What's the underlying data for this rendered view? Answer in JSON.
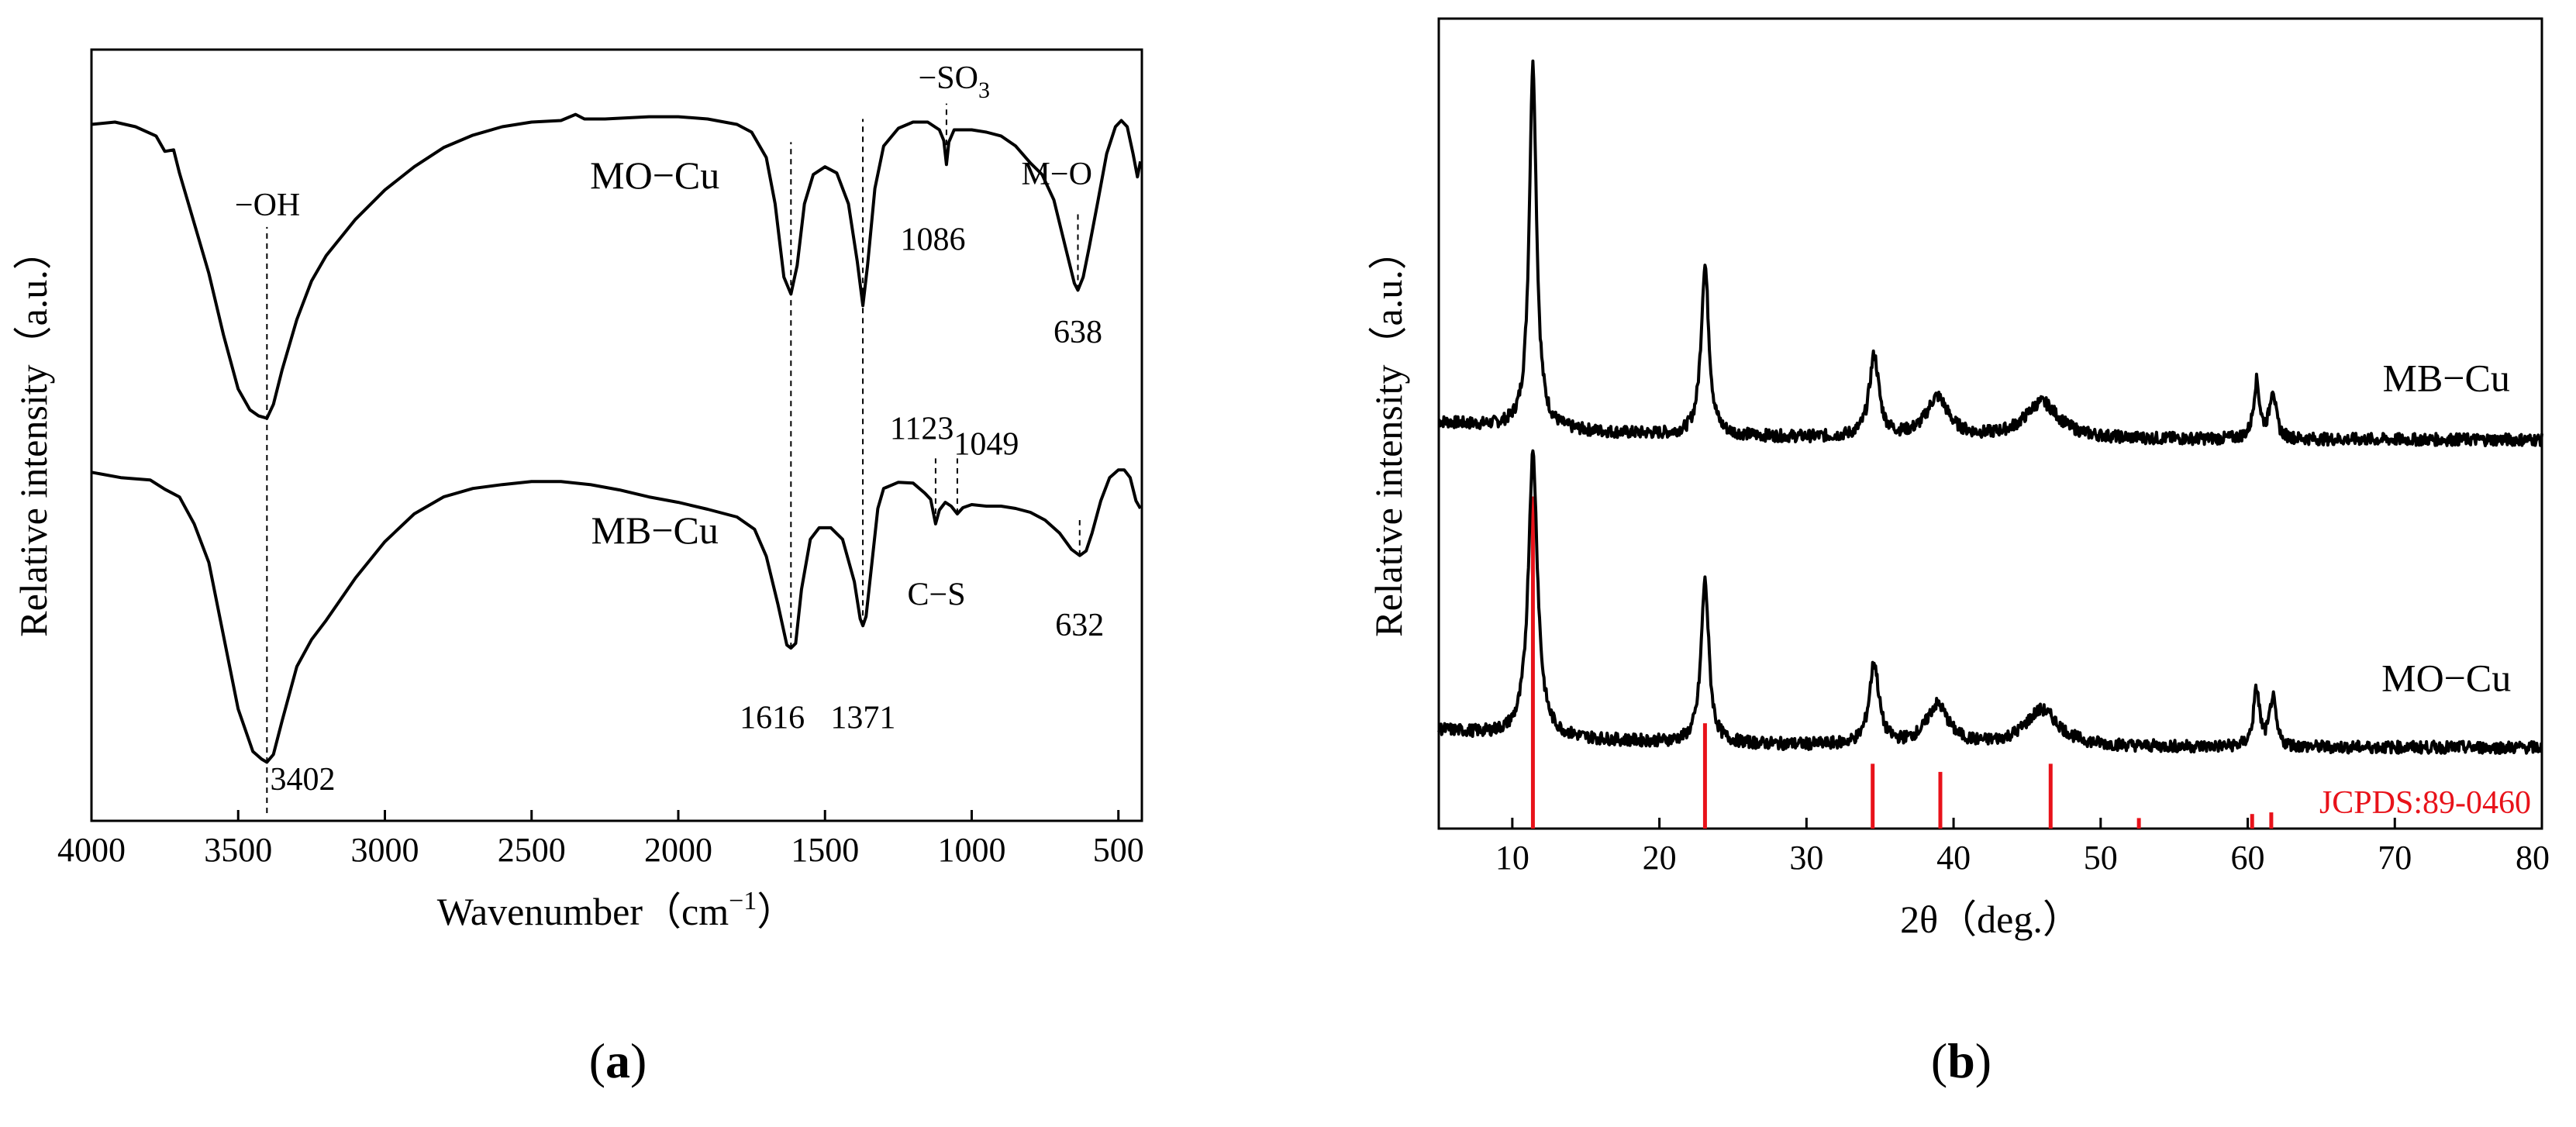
{
  "chart_data": [
    {
      "panel": "a",
      "panel_label": "(a)",
      "type": "line",
      "title": "",
      "xlabel": "Wavenumber（cm",
      "xlabel_sup": "−1",
      "xlabel_end": "）",
      "ylabel": "Relative intensity（a.u.）",
      "xlim": [
        4000,
        420
      ],
      "ylim": [
        0,
        100
      ],
      "xticks": [
        4000,
        3500,
        3000,
        2500,
        2000,
        1500,
        1000,
        500
      ],
      "grid": false,
      "series": [
        {
          "name": "MO−Cu",
          "points": [
            [
              4000,
              90.3
            ],
            [
              3920,
              90.6
            ],
            [
              3850,
              90.0
            ],
            [
              3780,
              88.8
            ],
            [
              3750,
              86.8
            ],
            [
              3720,
              87.0
            ],
            [
              3700,
              84.0
            ],
            [
              3650,
              77.5
            ],
            [
              3600,
              71.0
            ],
            [
              3550,
              63.0
            ],
            [
              3500,
              56.0
            ],
            [
              3460,
              53.3
            ],
            [
              3430,
              52.5
            ],
            [
              3402,
              52.2
            ],
            [
              3380,
              54.0
            ],
            [
              3350,
              58.5
            ],
            [
              3300,
              65.0
            ],
            [
              3250,
              70.0
            ],
            [
              3200,
              73.3
            ],
            [
              3100,
              78.0
            ],
            [
              3000,
              81.8
            ],
            [
              2900,
              84.8
            ],
            [
              2800,
              87.3
            ],
            [
              2700,
              88.9
            ],
            [
              2600,
              90.0
            ],
            [
              2500,
              90.6
            ],
            [
              2400,
              90.8
            ],
            [
              2350,
              91.6
            ],
            [
              2320,
              91.0
            ],
            [
              2250,
              91.0
            ],
            [
              2100,
              91.3
            ],
            [
              2000,
              91.3
            ],
            [
              1900,
              91.0
            ],
            [
              1800,
              90.3
            ],
            [
              1750,
              89.3
            ],
            [
              1700,
              86.0
            ],
            [
              1670,
              80.0
            ],
            [
              1640,
              70.5
            ],
            [
              1616,
              68.3
            ],
            [
              1595,
              72.0
            ],
            [
              1570,
              80.0
            ],
            [
              1540,
              83.8
            ],
            [
              1500,
              84.8
            ],
            [
              1460,
              84.0
            ],
            [
              1420,
              80.0
            ],
            [
              1390,
              72.5
            ],
            [
              1371,
              66.8
            ],
            [
              1355,
              72.0
            ],
            [
              1330,
              82.0
            ],
            [
              1300,
              87.5
            ],
            [
              1250,
              89.8
            ],
            [
              1200,
              90.6
            ],
            [
              1150,
              90.6
            ],
            [
              1110,
              89.6
            ],
            [
              1095,
              88.2
            ],
            [
              1086,
              85.1
            ],
            [
              1078,
              88.0
            ],
            [
              1060,
              89.6
            ],
            [
              1000,
              89.6
            ],
            [
              950,
              89.3
            ],
            [
              900,
              88.8
            ],
            [
              850,
              87.5
            ],
            [
              800,
              85.3
            ],
            [
              760,
              83.8
            ],
            [
              720,
              80.5
            ],
            [
              680,
              74.3
            ],
            [
              650,
              69.7
            ],
            [
              638,
              68.8
            ],
            [
              620,
              70.5
            ],
            [
              600,
              74.3
            ],
            [
              570,
              80.3
            ],
            [
              540,
              86.5
            ],
            [
              510,
              90.0
            ],
            [
              490,
              90.8
            ],
            [
              470,
              90.0
            ],
            [
              450,
              86.5
            ],
            [
              435,
              83.5
            ],
            [
              425,
              85.5
            ]
          ]
        },
        {
          "name": "MB−Cu",
          "points": [
            [
              4000,
              45.2
            ],
            [
              3900,
              44.5
            ],
            [
              3800,
              44.2
            ],
            [
              3750,
              43.0
            ],
            [
              3700,
              42.0
            ],
            [
              3650,
              38.5
            ],
            [
              3600,
              33.5
            ],
            [
              3550,
              24.0
            ],
            [
              3500,
              14.5
            ],
            [
              3450,
              9.0
            ],
            [
              3420,
              8.0
            ],
            [
              3402,
              7.6
            ],
            [
              3380,
              8.6
            ],
            [
              3350,
              13.0
            ],
            [
              3300,
              20.0
            ],
            [
              3250,
              23.5
            ],
            [
              3200,
              26.0
            ],
            [
              3100,
              31.5
            ],
            [
              3000,
              36.2
            ],
            [
              2900,
              39.8
            ],
            [
              2800,
              42.0
            ],
            [
              2700,
              43.1
            ],
            [
              2600,
              43.6
            ],
            [
              2500,
              44.0
            ],
            [
              2400,
              44.0
            ],
            [
              2300,
              43.6
            ],
            [
              2200,
              42.9
            ],
            [
              2100,
              42.0
            ],
            [
              2000,
              41.3
            ],
            [
              1900,
              40.4
            ],
            [
              1800,
              39.4
            ],
            [
              1740,
              37.8
            ],
            [
              1700,
              34.3
            ],
            [
              1660,
              28.0
            ],
            [
              1630,
              22.8
            ],
            [
              1616,
              22.4
            ],
            [
              1600,
              23.0
            ],
            [
              1580,
              30.0
            ],
            [
              1550,
              36.5
            ],
            [
              1520,
              38.0
            ],
            [
              1480,
              38.0
            ],
            [
              1440,
              36.5
            ],
            [
              1400,
              31.0
            ],
            [
              1380,
              26.2
            ],
            [
              1371,
              25.3
            ],
            [
              1360,
              26.5
            ],
            [
              1340,
              33.5
            ],
            [
              1320,
              40.5
            ],
            [
              1300,
              43.1
            ],
            [
              1250,
              43.9
            ],
            [
              1200,
              43.8
            ],
            [
              1160,
              42.5
            ],
            [
              1140,
              41.7
            ],
            [
              1123,
              38.5
            ],
            [
              1110,
              40.3
            ],
            [
              1090,
              41.3
            ],
            [
              1070,
              40.8
            ],
            [
              1049,
              39.8
            ],
            [
              1030,
              40.6
            ],
            [
              1000,
              41.0
            ],
            [
              950,
              40.8
            ],
            [
              900,
              40.8
            ],
            [
              850,
              40.5
            ],
            [
              800,
              40.0
            ],
            [
              750,
              39.0
            ],
            [
              700,
              37.3
            ],
            [
              660,
              35.2
            ],
            [
              632,
              34.4
            ],
            [
              610,
              35.0
            ],
            [
              590,
              37.3
            ],
            [
              560,
              41.5
            ],
            [
              530,
              44.5
            ],
            [
              500,
              45.5
            ],
            [
              480,
              45.5
            ],
            [
              460,
              44.5
            ],
            [
              440,
              41.5
            ],
            [
              425,
              40.5
            ]
          ]
        }
      ],
      "curve_labels": [
        {
          "text": "MO−Cu",
          "x": 2080,
          "y": 82
        },
        {
          "text": "MB−Cu",
          "x": 2080,
          "y": 36
        }
      ],
      "guides": [
        {
          "x": 3402,
          "y_from": 1,
          "y_to": 77
        },
        {
          "x": 1616,
          "y_from": 22.4,
          "y_to": 88
        },
        {
          "x": 1371,
          "y_from": 25.3,
          "y_to": 91
        },
        {
          "x": 1086,
          "y_from": 85,
          "y_to": 93
        },
        {
          "x": 1123,
          "y_from": 38.5,
          "y_to": 47
        },
        {
          "x": 1049,
          "y_from": 39.8,
          "y_to": 47
        },
        {
          "x": 638,
          "y_from": 68.8,
          "y_to": 79
        },
        {
          "x": 632,
          "y_from": 34.4,
          "y_to": 39
        }
      ],
      "annotations": [
        {
          "text": "−OH",
          "x": 3400,
          "y": 78.5,
          "anchor": "middle"
        },
        {
          "text": "−SO",
          "sub": "3",
          "x": 1060,
          "y": 95,
          "anchor": "middle"
        },
        {
          "text": "M−O",
          "x": 710,
          "y": 82.5,
          "anchor": "middle"
        },
        {
          "text": "1086",
          "x": 1132,
          "y": 74,
          "anchor": "middle"
        },
        {
          "text": "638",
          "x": 638,
          "y": 62,
          "anchor": "middle"
        },
        {
          "text": "1123",
          "x": 1170,
          "y": 49.5,
          "anchor": "middle"
        },
        {
          "text": "1049",
          "x": 950,
          "y": 47.5,
          "anchor": "middle"
        },
        {
          "text": "C−S",
          "x": 1120,
          "y": 28,
          "anchor": "middle"
        },
        {
          "text": "632",
          "x": 632,
          "y": 24,
          "anchor": "middle"
        },
        {
          "text": "1616",
          "x": 1680,
          "y": 12,
          "anchor": "middle"
        },
        {
          "text": "1371",
          "x": 1370,
          "y": 12,
          "anchor": "middle"
        },
        {
          "text": "3402",
          "x": 3280,
          "y": 4,
          "anchor": "middle"
        }
      ]
    },
    {
      "panel": "b",
      "panel_label": "(b)",
      "type": "line",
      "title": "",
      "xlabel": "2θ（deg.）",
      "ylabel": "Relative intensity（a.u.）",
      "xlim": [
        5,
        80
      ],
      "ylim": [
        0,
        100
      ],
      "xticks": [
        10,
        20,
        30,
        40,
        50,
        60,
        70,
        80
      ],
      "grid": false,
      "reference_label": "JCPDS:89-0460",
      "reference_color": "#e8121a",
      "reference_lines": [
        {
          "x": 11.4,
          "height": 41
        },
        {
          "x": 23.1,
          "height": 13
        },
        {
          "x": 34.5,
          "height": 8
        },
        {
          "x": 39.1,
          "height": 7
        },
        {
          "x": 46.6,
          "height": 8
        },
        {
          "x": 52.6,
          "height": 1.3
        },
        {
          "x": 60.3,
          "height": 1.8
        },
        {
          "x": 61.6,
          "height": 2.0
        }
      ],
      "series": [
        {
          "name": "MB−Cu",
          "base": 48,
          "peaks": [
            [
              11.4,
              45,
              0.3
            ],
            [
              23.1,
              21,
              0.32
            ],
            [
              34.6,
              10,
              0.4
            ],
            [
              38.9,
              5,
              0.9
            ],
            [
              46.0,
              4.5,
              1.4
            ],
            [
              60.6,
              7,
              0.25
            ],
            [
              61.7,
              6,
              0.25
            ]
          ]
        },
        {
          "name": "MO−Cu",
          "base": 10,
          "peaks": [
            [
              11.4,
              35,
              0.38
            ],
            [
              23.1,
              20,
              0.32
            ],
            [
              34.6,
              10,
              0.4
            ],
            [
              38.9,
              5,
              0.9
            ],
            [
              46.0,
              4.5,
              1.4
            ],
            [
              60.6,
              7,
              0.25
            ],
            [
              61.7,
              6,
              0.25
            ]
          ]
        }
      ],
      "curve_labels": [
        {
          "text": "MB−Cu",
          "x": 73.5,
          "y": 54
        },
        {
          "text": "MO−Cu",
          "x": 73.5,
          "y": 17
        }
      ]
    }
  ]
}
